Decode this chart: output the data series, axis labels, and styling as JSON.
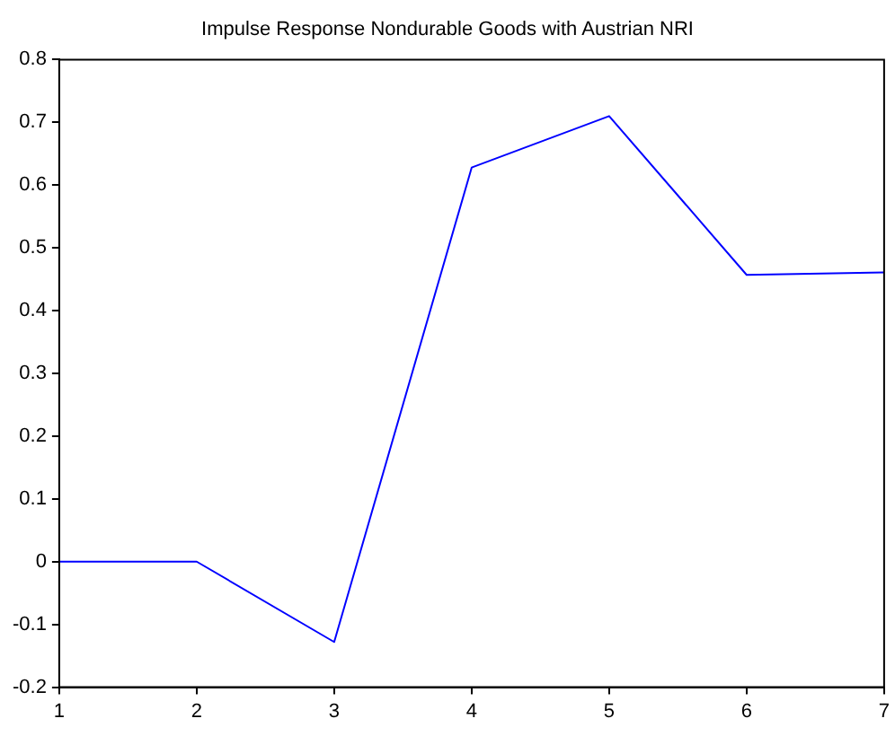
{
  "chart_data": {
    "type": "line",
    "title": "Impulse Response Nondurable Goods with Austrian NRI",
    "x": [
      1,
      2,
      3,
      4,
      5,
      6,
      7
    ],
    "series": [
      {
        "color": "#0000ff",
        "values": [
          0,
          0,
          -0.128,
          0.628,
          0.71,
          0.457,
          0.461
        ]
      }
    ],
    "xlim": [
      1,
      7
    ],
    "xticks": [
      1,
      2,
      3,
      4,
      5,
      6,
      7
    ],
    "ylim": [
      -0.2,
      0.8
    ],
    "yticks": [
      -0.2,
      -0.1,
      0,
      0.1,
      0.2,
      0.3,
      0.4,
      0.5,
      0.6,
      0.7,
      0.8
    ],
    "grid": false,
    "legend": false,
    "marker": "none",
    "line_style": "solid"
  }
}
